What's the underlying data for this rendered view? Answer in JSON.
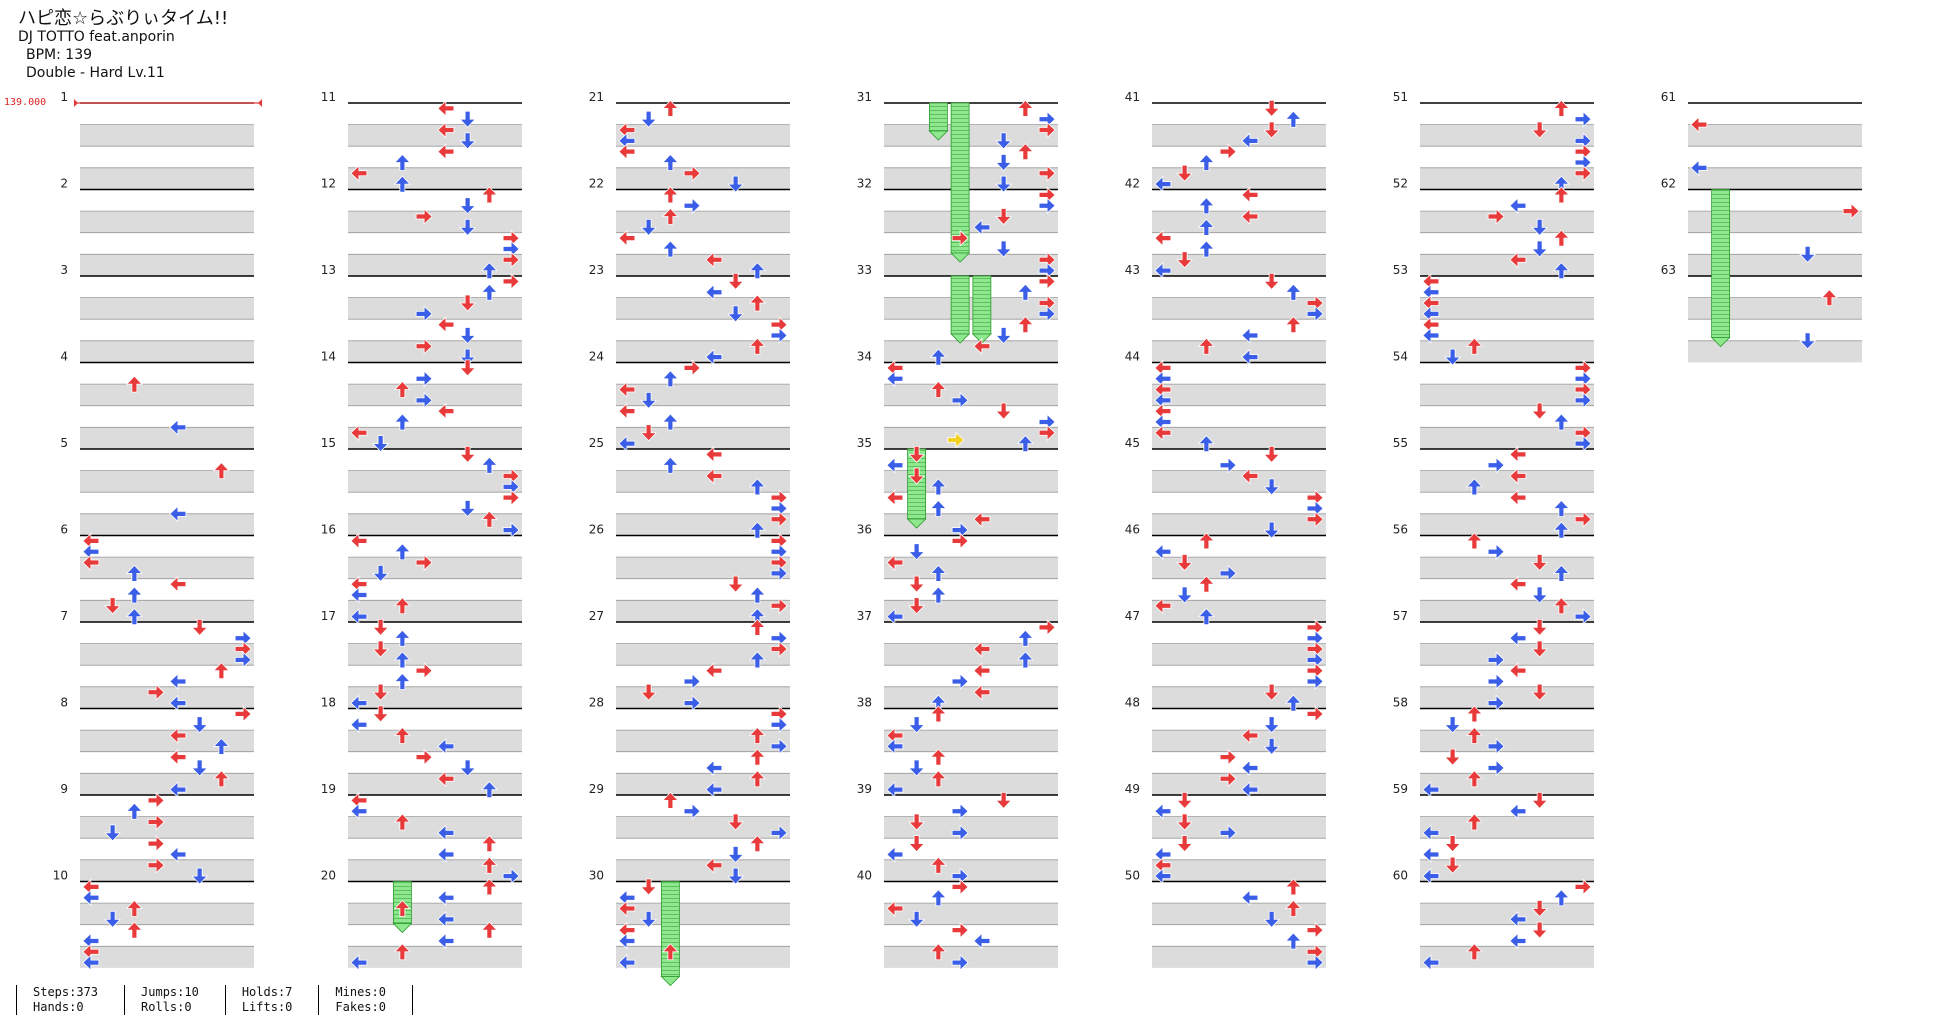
{
  "song": {
    "title": "ハピ恋☆らぶりぃタイム!!",
    "artist": "DJ TOTTO feat.anporin",
    "bpm_text": "BPM: 139",
    "difficulty_text": "Double - Hard Lv.11"
  },
  "bpm_marker": "139.000",
  "measure_labels": [
    "1",
    "2",
    "3",
    "4",
    "5",
    "6",
    "7",
    "8",
    "9",
    "10",
    "11",
    "12",
    "13",
    "14",
    "15",
    "16",
    "17",
    "18",
    "19",
    "20",
    "21",
    "22",
    "23",
    "24",
    "25",
    "26",
    "27",
    "28",
    "29",
    "30",
    "31",
    "32",
    "33",
    "34",
    "35",
    "36",
    "37",
    "38",
    "39",
    "40",
    "41",
    "42",
    "43",
    "44",
    "45",
    "46",
    "47",
    "48",
    "49",
    "50",
    "51",
    "52",
    "53",
    "54",
    "55",
    "56",
    "57",
    "58",
    "59",
    "60",
    "61",
    "62",
    "63"
  ],
  "colors": {
    "quarter": "#e83a3a",
    "eighth": "#3a5ee8",
    "sixteenth": "#f2d21e",
    "hold": "#7fe07f",
    "stripe": "#dcdcdc"
  },
  "stats": {
    "steps": "Steps:373",
    "hands": "Hands:0",
    "jumps": "Jumps:10",
    "rolls": "Rolls:0",
    "holds": "Holds:7",
    "lifts": "Lifts:0",
    "mines": "Mines:0",
    "fakes": "Fakes:0"
  }
}
